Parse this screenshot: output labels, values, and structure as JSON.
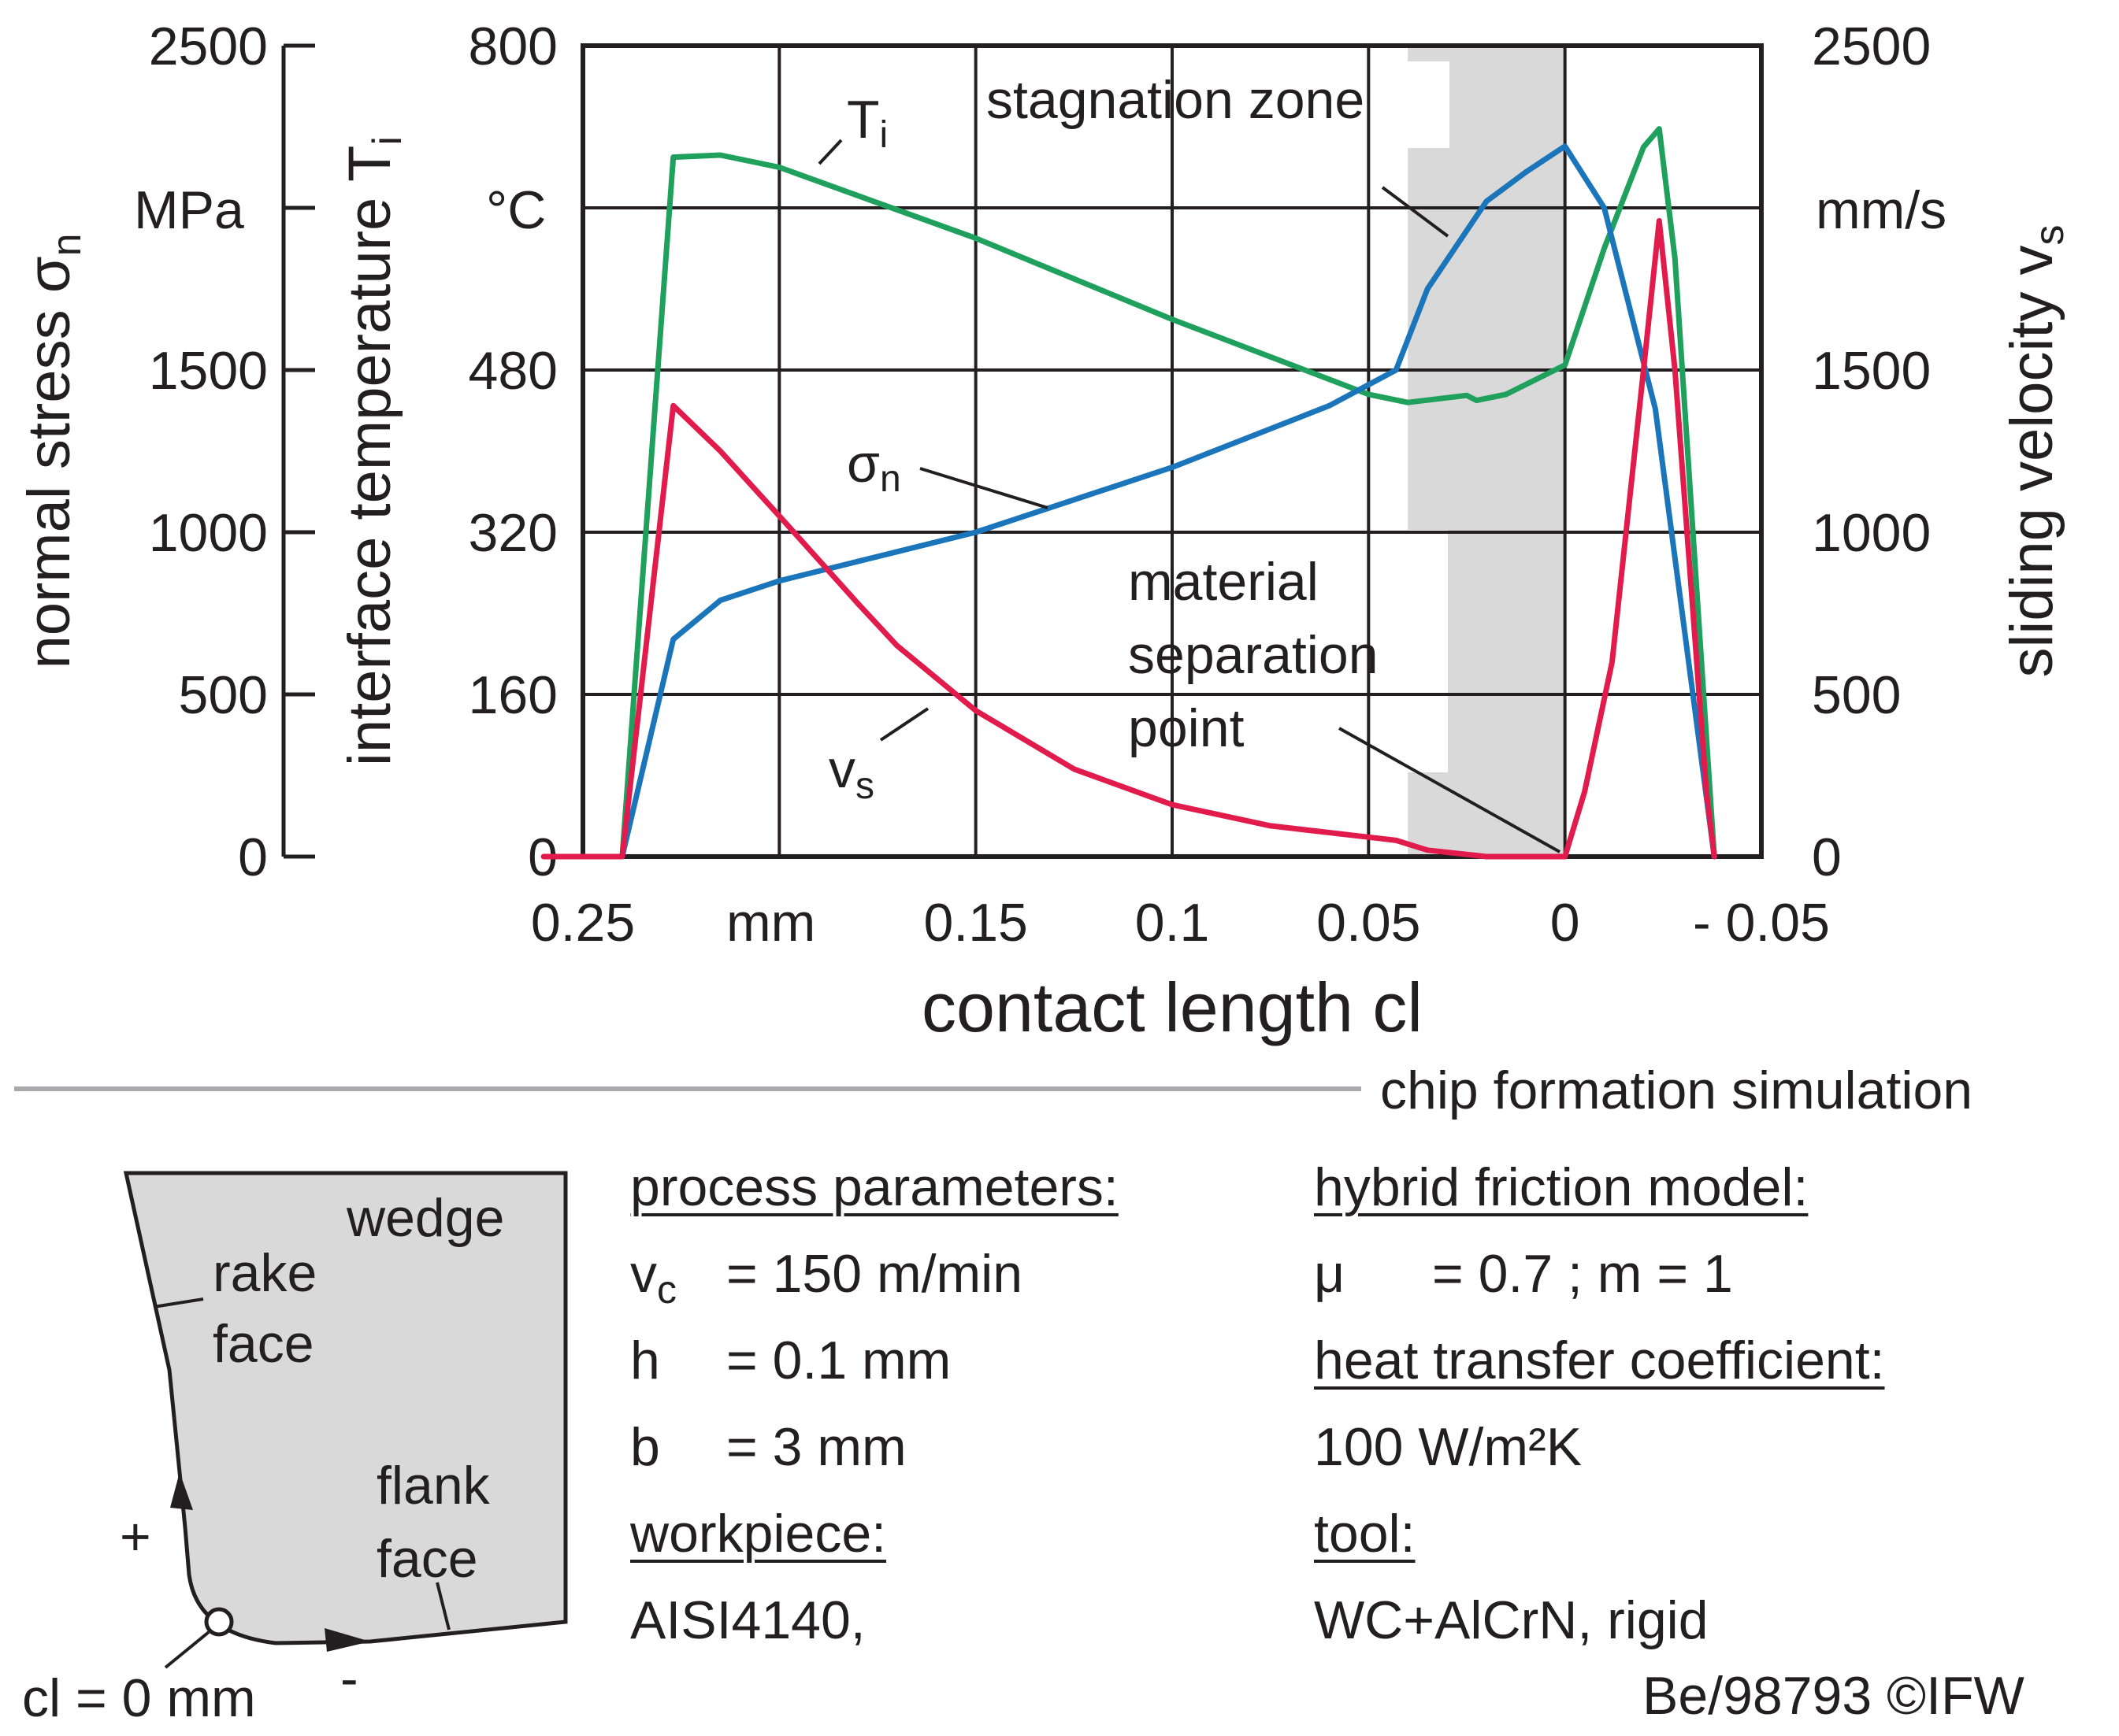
{
  "chart_data": {
    "type": "line",
    "xlabel": "contact length cl",
    "x_unit": "mm",
    "xlim": [
      0.25,
      -0.05
    ],
    "x_ticks": [
      "0.25",
      "0.15",
      "0.1",
      "0.05",
      "0",
      "- 0.05"
    ],
    "axes": {
      "normal_stress": {
        "label": "normal stress σn",
        "symbol": "σ",
        "sub": "n",
        "unit": "MPa",
        "ylim": [
          0,
          2500
        ],
        "ticks": [
          "0",
          "500",
          "1000",
          "1500",
          "2500"
        ]
      },
      "temperature": {
        "label": "interface temperature Ti",
        "symbol": "T",
        "sub": "i",
        "unit": "°C",
        "ylim": [
          0,
          800
        ],
        "ticks": [
          "0",
          "160",
          "320",
          "480",
          "800"
        ]
      },
      "sliding_velocity": {
        "label": "sliding velocity vs",
        "symbol": "v",
        "sub": "s",
        "unit": "mm/s",
        "ylim": [
          0,
          2500
        ],
        "ticks": [
          "0",
          "500",
          "1000",
          "1500",
          "2500"
        ]
      }
    },
    "series": [
      {
        "name": "Ti",
        "symbol": "T",
        "sub": "i",
        "axis": "temperature",
        "color": "#1fa15d",
        "x": [
          0.24,
          0.227,
          0.215,
          0.2,
          0.15,
          0.1,
          0.05,
          0.04,
          0.025,
          0.0225,
          0.015,
          0.0,
          -0.01,
          -0.02,
          -0.024,
          -0.028,
          -0.038
        ],
        "y": [
          0,
          690,
          692,
          680,
          610,
          530,
          456,
          448,
          455,
          450,
          456,
          485,
          600,
          700,
          718,
          590,
          0
        ]
      },
      {
        "name": "σn",
        "symbol": "σ",
        "sub": "n",
        "axis": "normal_stress",
        "color": "#1b75bb",
        "x": [
          0.24,
          0.227,
          0.215,
          0.2,
          0.15,
          0.1,
          0.06,
          0.043,
          0.035,
          0.02,
          0.01,
          0.0,
          -0.01,
          -0.023,
          -0.038
        ],
        "y": [
          0,
          670,
          790,
          850,
          1000,
          1200,
          1390,
          1500,
          1750,
          2020,
          2110,
          2190,
          2000,
          1380,
          0
        ]
      },
      {
        "name": "vs",
        "symbol": "v",
        "sub": "s",
        "axis": "sliding_velocity",
        "color": "#e21b4d",
        "x": [
          0.26,
          0.24,
          0.227,
          0.215,
          0.2,
          0.18,
          0.17,
          0.15,
          0.125,
          0.1,
          0.075,
          0.05,
          0.043,
          0.035,
          0.02,
          0.005,
          0.0,
          -0.005,
          -0.012,
          -0.02,
          -0.024,
          -0.028,
          -0.036,
          -0.038
        ],
        "y": [
          0,
          0,
          1390,
          1250,
          1050,
          780,
          650,
          450,
          270,
          160,
          95,
          60,
          50,
          20,
          0,
          0,
          0,
          200,
          600,
          1500,
          1960,
          1500,
          200,
          0
        ]
      }
    ],
    "annotations": {
      "stagnation_zone": {
        "label": "stagnation zone",
        "x_range": [
          0.04,
          0.0
        ]
      },
      "material_separation_point": {
        "label": [
          "material",
          "separation",
          "point"
        ],
        "x": 0.0
      }
    }
  },
  "section_label": "chip formation simulation",
  "diagram": {
    "wedge": "wedge",
    "rake_face": [
      "rake",
      "face"
    ],
    "flank_face": [
      "flank",
      "face"
    ],
    "plus": "+",
    "minus": "-",
    "origin": "cl = 0 mm"
  },
  "process": {
    "heading": "process parameters:",
    "vc_symbol": "v",
    "vc_sub": "c",
    "vc_value": "= 150 m/min",
    "h_symbol": "h",
    "h_value": "= 0.1 mm",
    "b_symbol": "b",
    "b_value": "= 3 mm",
    "workpiece_heading": "workpiece:",
    "workpiece_value": "AISI4140,"
  },
  "friction": {
    "heading": "hybrid friction model:",
    "mu_symbol": "μ",
    "mu_value": "= 0.7 ; m = 1",
    "heat_heading": "heat transfer coefficient:",
    "heat_value": "100 W/m²K",
    "tool_heading": "tool:",
    "tool_value": "WC+AlCrN, rigid"
  },
  "copyright": "Be/98793 ©IFW"
}
